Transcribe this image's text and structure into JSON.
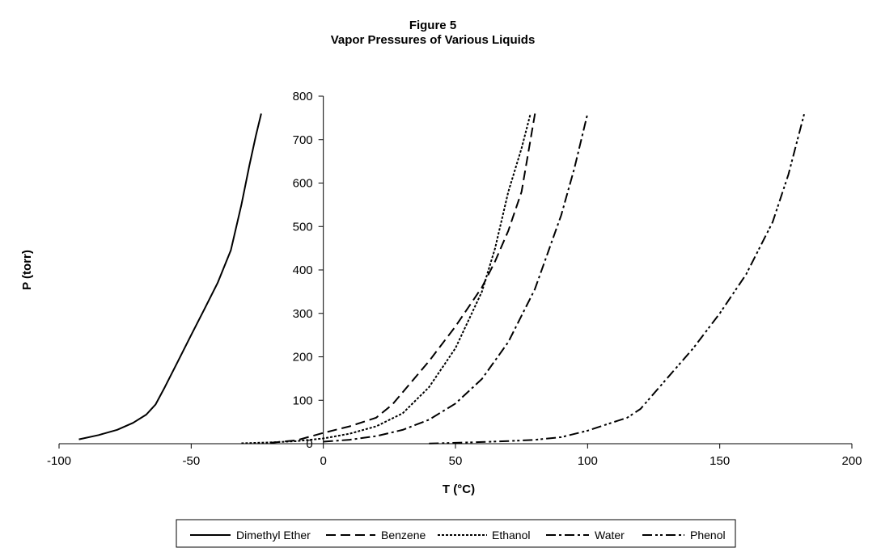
{
  "chart_data": {
    "type": "line",
    "title": "Figure 5",
    "subtitle": "Vapor Pressures of Various Liquids",
    "xlabel": "T (°C)",
    "ylabel": "P (torr)",
    "xlim": [
      -100,
      200
    ],
    "ylim": [
      0,
      800
    ],
    "x_ticks": [
      -100,
      -50,
      0,
      50,
      100,
      150,
      200
    ],
    "y_ticks": [
      0,
      100,
      200,
      300,
      400,
      500,
      600,
      700,
      800
    ],
    "x_tick_labels": [
      "-100",
      "-50",
      "0",
      "50",
      "100",
      "150",
      "200"
    ],
    "y_tick_labels": [
      "0",
      "100",
      "200",
      "300",
      "400",
      "500",
      "600",
      "700",
      "800"
    ],
    "grid": false,
    "legend_position": "bottom",
    "series": [
      {
        "name": "Dimethyl Ether",
        "dash": "solid",
        "x": [
          -92.5,
          -85,
          -78,
          -72,
          -67,
          -63.5,
          -60,
          -55,
          -50,
          -45,
          -40,
          -35,
          -31,
          -28,
          -25.5,
          -23.5
        ],
        "y": [
          10,
          20,
          32,
          48,
          67,
          90,
          130,
          190,
          250,
          310,
          370,
          445,
          550,
          640,
          710,
          760
        ]
      },
      {
        "name": "Benzene",
        "dash": "dash",
        "x": [
          -20,
          -10,
          0,
          10,
          20,
          26.1,
          40,
          50,
          60,
          65,
          70,
          75,
          80.1
        ],
        "y": [
          2,
          8,
          25,
          40,
          60,
          90,
          190,
          270,
          360,
          420,
          490,
          580,
          760
        ]
      },
      {
        "name": "Ethanol",
        "dash": "dot",
        "x": [
          -31,
          -20,
          -10,
          0,
          10,
          20,
          30,
          40,
          50,
          60,
          65,
          70,
          75,
          78.4
        ],
        "y": [
          1,
          3,
          6,
          12,
          23,
          40,
          70,
          130,
          220,
          350,
          450,
          580,
          680,
          760
        ]
      },
      {
        "name": "Water",
        "dash": "dash-dot",
        "x": [
          0,
          10,
          20,
          30,
          40,
          50,
          60,
          70,
          80,
          90,
          95,
          100
        ],
        "y": [
          4.6,
          9.2,
          17.5,
          31.8,
          55.3,
          92.5,
          149,
          234,
          355,
          526,
          634,
          760
        ]
      },
      {
        "name": "Phenol",
        "dash": "dash-dot-dot",
        "x": [
          40,
          50,
          60,
          70,
          80,
          90,
          100,
          110,
          115,
          120,
          130,
          140,
          150,
          160,
          170,
          176,
          182
        ],
        "y": [
          0.4,
          2,
          4,
          6,
          9,
          15,
          30,
          50,
          60,
          80,
          150,
          220,
          300,
          390,
          510,
          620,
          760
        ]
      }
    ]
  }
}
